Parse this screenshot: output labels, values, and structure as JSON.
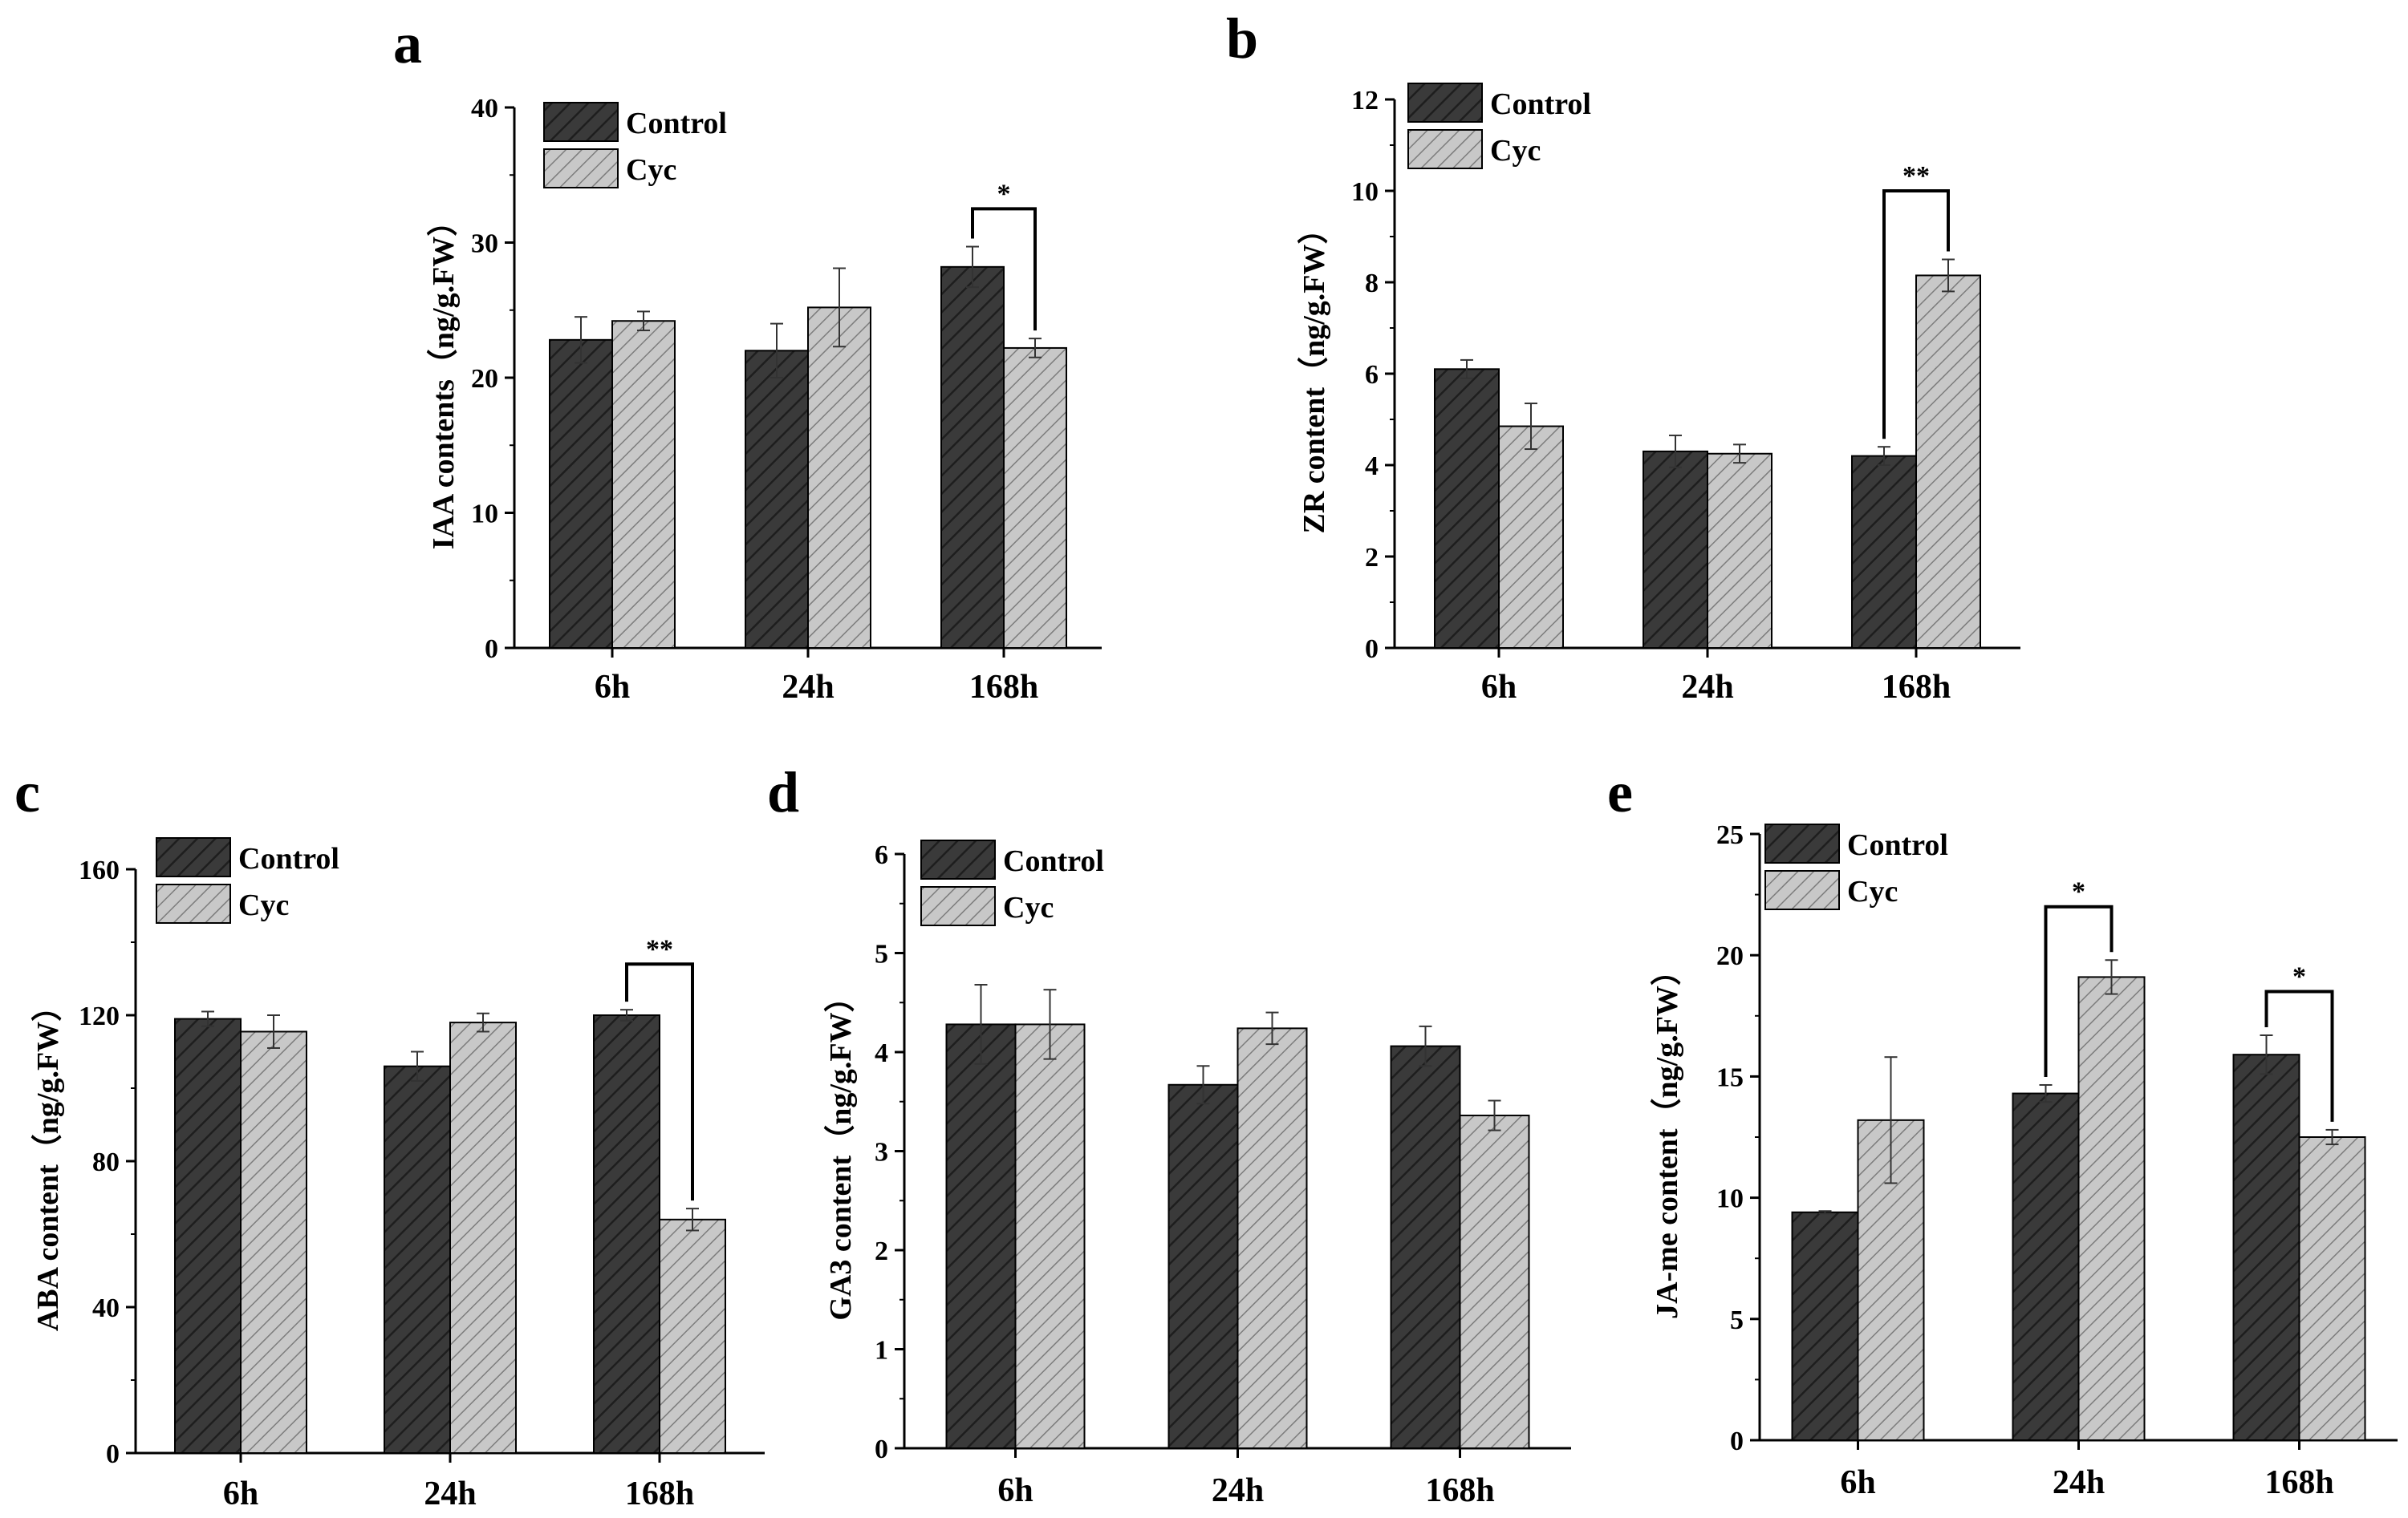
{
  "colors": {
    "control_fill": "#3a3a3a",
    "control_hatch": "#222222",
    "cyc_fill": "#c6c6c6",
    "cyc_hatch": "#7a7a7a",
    "axis": "#000000"
  },
  "chart_data": [
    {
      "id": "a",
      "type": "bar",
      "letter": "a",
      "ylabel": "IAA contents（ng/g.FW）",
      "categories": [
        "6h",
        "24h",
        "168h"
      ],
      "ylim": [
        0,
        40
      ],
      "yticks": [
        0,
        10,
        20,
        30,
        40
      ],
      "series": [
        {
          "name": "Control",
          "values": [
            22.8,
            22.0,
            28.2
          ],
          "errors": [
            1.7,
            2.0,
            1.5
          ]
        },
        {
          "name": "Cyc",
          "values": [
            24.2,
            25.2,
            22.2
          ],
          "errors": [
            0.7,
            2.9,
            0.7
          ]
        }
      ],
      "significance": [
        {
          "category": 2,
          "label": "*",
          "top": 32.5
        }
      ]
    },
    {
      "id": "b",
      "type": "bar",
      "letter": "b",
      "ylabel": "ZR content（ng/g.FW）",
      "categories": [
        "6h",
        "24h",
        "168h"
      ],
      "ylim": [
        0,
        12
      ],
      "yticks": [
        0,
        2,
        4,
        6,
        8,
        10,
        12
      ],
      "series": [
        {
          "name": "Control",
          "values": [
            6.1,
            4.3,
            4.2
          ],
          "errors": [
            0.2,
            0.35,
            0.2
          ]
        },
        {
          "name": "Cyc",
          "values": [
            4.85,
            4.25,
            8.15
          ],
          "errors": [
            0.5,
            0.2,
            0.35
          ]
        }
      ],
      "significance": [
        {
          "category": 2,
          "label": "**",
          "top": 10.0
        }
      ]
    },
    {
      "id": "c",
      "type": "bar",
      "letter": "c",
      "ylabel": "ABA content（ng/g.FW）",
      "categories": [
        "6h",
        "24h",
        "168h"
      ],
      "ylim": [
        0,
        160
      ],
      "yticks": [
        0,
        40,
        80,
        120,
        160
      ],
      "series": [
        {
          "name": "Control",
          "values": [
            119,
            106,
            120
          ],
          "errors": [
            2,
            4,
            1.5
          ]
        },
        {
          "name": "Cyc",
          "values": [
            115.5,
            118,
            64
          ],
          "errors": [
            4.5,
            2.5,
            3
          ]
        }
      ],
      "significance": [
        {
          "category": 2,
          "label": "**",
          "top": 134
        }
      ]
    },
    {
      "id": "d",
      "type": "bar",
      "letter": "d",
      "ylabel": "GA3 content（ng/g.FW）",
      "categories": [
        "6h",
        "24h",
        "168h"
      ],
      "ylim": [
        0,
        6
      ],
      "yticks": [
        0,
        1,
        2,
        3,
        4,
        5,
        6
      ],
      "series": [
        {
          "name": "Control",
          "values": [
            4.28,
            3.67,
            4.06
          ],
          "errors": [
            0.4,
            0.19,
            0.2
          ]
        },
        {
          "name": "Cyc",
          "values": [
            4.28,
            4.24,
            3.36
          ],
          "errors": [
            0.35,
            0.16,
            0.15
          ]
        }
      ],
      "significance": []
    },
    {
      "id": "e",
      "type": "bar",
      "letter": "e",
      "ylabel": "JA-me content（ng/g.FW）",
      "categories": [
        "6h",
        "24h",
        "168h"
      ],
      "ylim": [
        0,
        25
      ],
      "yticks": [
        0,
        5,
        10,
        15,
        20,
        25
      ],
      "series": [
        {
          "name": "Control",
          "values": [
            9.4,
            14.3,
            15.9
          ],
          "errors": [
            0.05,
            0.35,
            0.8
          ]
        },
        {
          "name": "Cyc",
          "values": [
            13.2,
            19.1,
            12.5
          ],
          "errors": [
            2.6,
            0.7,
            0.3
          ]
        }
      ],
      "significance": [
        {
          "category": 1,
          "label": "*",
          "top": 22.0
        },
        {
          "category": 2,
          "label": "*",
          "top": 18.5
        }
      ]
    }
  ]
}
